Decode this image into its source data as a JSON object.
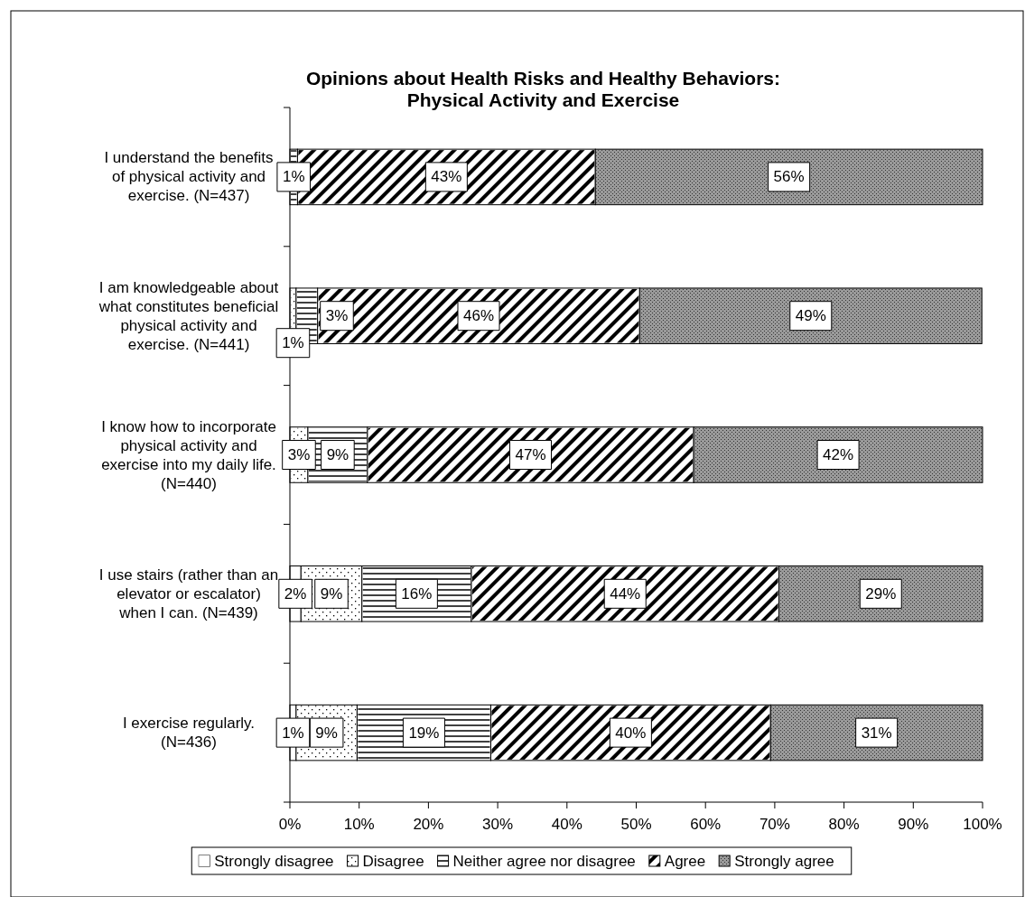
{
  "chart_data": {
    "type": "bar",
    "orientation": "horizontal",
    "stacked": true,
    "title": "Opinions about Health Risks and Healthy Behaviors: Physical Activity and Exercise",
    "categories": [
      "I understand the benefits of physical activity and exercise. (N=437)",
      "I am knowledgeable about what constitutes beneficial physical activity and exercise. (N=441)",
      "I know how to incorporate physical activity and exercise into my daily life. (N=440)",
      "I use stairs (rather than an elevator or escalator) when I can. (N=439)",
      "I exercise regularly. (N=436)"
    ],
    "series": [
      {
        "name": "Strongly disagree",
        "color": "#ffffff",
        "values": [
          0,
          0,
          0,
          1.6,
          0.9
        ],
        "value_labels": [
          null,
          null,
          null,
          "2%",
          "1%"
        ]
      },
      {
        "name": "Disagree",
        "color": "#ffffff",
        "values": [
          0,
          0.9,
          2.6,
          8.8,
          8.8
        ],
        "value_labels": [
          null,
          "1%",
          "3%",
          "9%",
          "9%"
        ]
      },
      {
        "name": "Neither agree nor disagree",
        "color": "#ffffff",
        "values": [
          1.1,
          3.1,
          8.6,
          15.8,
          19.3
        ],
        "value_labels": [
          "1%",
          "3%",
          "9%",
          "16%",
          "19%"
        ]
      },
      {
        "name": "Agree",
        "color": "#ffffff",
        "values": [
          43.0,
          46.5,
          47.1,
          44.4,
          40.4
        ],
        "value_labels": [
          "43%",
          "46%",
          "47%",
          "44%",
          "40%"
        ]
      },
      {
        "name": "Strongly agree",
        "color": "#9a9a9a",
        "values": [
          55.9,
          49.4,
          41.7,
          29.4,
          30.6
        ],
        "value_labels": [
          "56%",
          "49%",
          "42%",
          "29%",
          "31%"
        ]
      }
    ],
    "xlim": [
      0,
      100
    ],
    "xticks": [
      {
        "value": 0,
        "label": "0%"
      },
      {
        "value": 10,
        "label": "10%"
      },
      {
        "value": 20,
        "label": "20%"
      },
      {
        "value": 30,
        "label": "30%"
      },
      {
        "value": 40,
        "label": "40%"
      },
      {
        "value": 50,
        "label": "50%"
      },
      {
        "value": 60,
        "label": "60%"
      },
      {
        "value": 70,
        "label": "70%"
      },
      {
        "value": 80,
        "label": "80%"
      },
      {
        "value": 90,
        "label": "90%"
      },
      {
        "value": 100,
        "label": "100%"
      }
    ],
    "legend": "bottom",
    "grid": false
  }
}
